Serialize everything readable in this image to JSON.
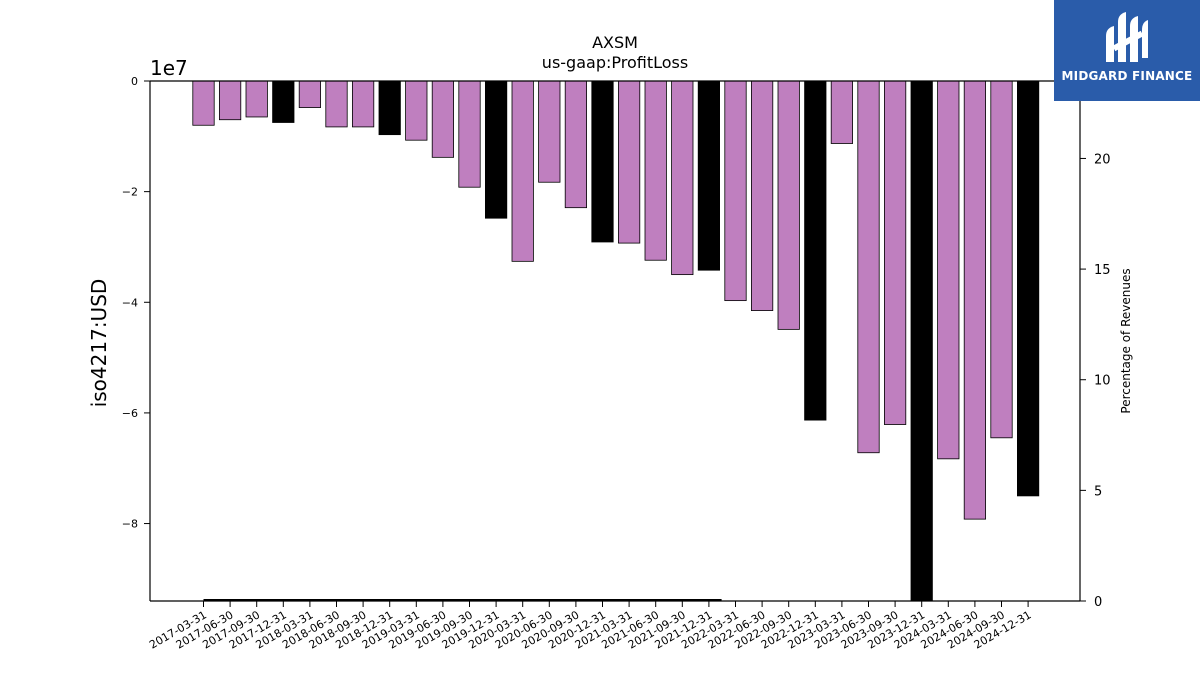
{
  "chart_data": {
    "type": "bar",
    "title": "AXSM",
    "subtitle": "us-gaap:ProfitLoss",
    "ylabel": "iso4217:USD",
    "y_offset_label": "1e7",
    "y2label": "Percentage of Revenues",
    "ylim": [
      -9.4,
      0
    ],
    "y_ticks": [
      0,
      -2,
      -4,
      -6,
      -8
    ],
    "y_tick_labels": [
      "0",
      "−2",
      "−4",
      "−6",
      "−8"
    ],
    "y2lim": [
      0,
      23.5
    ],
    "y2_ticks": [
      0,
      5,
      10,
      15,
      20
    ],
    "y2_tick_labels": [
      "0",
      "5",
      "10",
      "15",
      "20"
    ],
    "categories": [
      "2017-03-31",
      "2017-06-30",
      "2017-09-30",
      "2017-12-31",
      "2018-03-31",
      "2018-06-30",
      "2018-09-30",
      "2018-12-31",
      "2019-03-31",
      "2019-06-30",
      "2019-09-30",
      "2019-12-31",
      "2020-03-31",
      "2020-06-30",
      "2020-09-30",
      "2020-12-31",
      "2021-03-31",
      "2021-06-30",
      "2021-09-30",
      "2021-12-31",
      "2022-03-31",
      "2022-06-30",
      "2022-09-30",
      "2022-12-31",
      "2023-03-31",
      "2023-06-30",
      "2023-09-30",
      "2023-12-31",
      "2024-03-31",
      "2024-06-30",
      "2024-09-30",
      "2024-12-31"
    ],
    "values": [
      -0.8,
      -0.7,
      -0.65,
      -0.75,
      -0.48,
      -0.83,
      -0.83,
      -0.97,
      -1.07,
      -1.38,
      -1.92,
      -2.48,
      -3.26,
      -1.83,
      -2.29,
      -2.91,
      -2.93,
      -3.24,
      -3.5,
      -3.42,
      -3.97,
      -4.15,
      -4.49,
      -6.13,
      -1.13,
      -6.72,
      -6.21,
      -9.4,
      -6.83,
      -7.92,
      -6.45,
      -7.5
    ],
    "bar_kind": [
      "quarter",
      "quarter",
      "quarter",
      "annual",
      "quarter",
      "quarter",
      "quarter",
      "annual",
      "quarter",
      "quarter",
      "quarter",
      "annual",
      "quarter",
      "quarter",
      "quarter",
      "annual",
      "quarter",
      "quarter",
      "quarter",
      "annual",
      "quarter",
      "quarter",
      "quarter",
      "annual",
      "quarter",
      "quarter",
      "quarter",
      "annual",
      "quarter",
      "quarter",
      "quarter",
      "annual"
    ],
    "percentage_line": {
      "values_y2": [
        0,
        0
      ],
      "from_category": "2017-03-31",
      "to_category": "2021-12-31"
    },
    "colors": {
      "quarter": "#bf7fbf",
      "annual": "#000000"
    },
    "grid": false
  },
  "logo": {
    "text": "MIDGARD FINANCE",
    "background": "#2a5caa"
  }
}
